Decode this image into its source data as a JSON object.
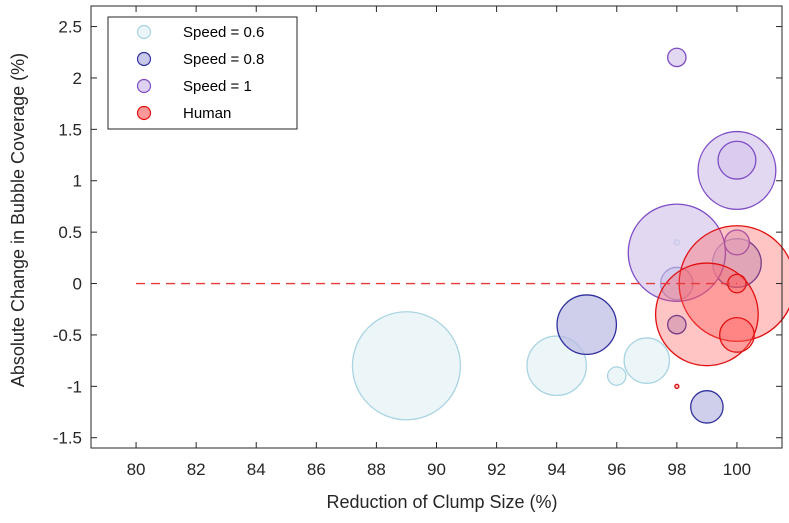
{
  "chart_data": {
    "type": "scatter",
    "title": "",
    "xlabel": "Reduction of Clump Size (%)",
    "ylabel": "Absolute Change in Bubble Coverage (%)",
    "xlim": [
      78.5,
      101.5
    ],
    "ylim": [
      -1.6,
      2.7
    ],
    "xticks": [
      80,
      82,
      84,
      86,
      88,
      90,
      92,
      94,
      96,
      98,
      100
    ],
    "yticks": [
      -1.5,
      -1,
      -0.5,
      0,
      0.5,
      1,
      1.5,
      2,
      2.5
    ],
    "reference_line": {
      "x": [
        80,
        100
      ],
      "y": 0,
      "color": "#e8393b",
      "style": "dashed"
    },
    "legend": {
      "position": "top-left"
    },
    "series": [
      {
        "name": "Speed = 0.6",
        "fill": "#e4f2f6",
        "stroke": "#a9d4e1",
        "points": [
          {
            "x": 89,
            "y": -0.8,
            "size": 1.0
          },
          {
            "x": 94,
            "y": -0.8,
            "size": 0.55
          },
          {
            "x": 97,
            "y": -0.75,
            "size": 0.42
          },
          {
            "x": 96,
            "y": -0.9,
            "size": 0.17
          },
          {
            "x": 98,
            "y": 0.4,
            "size": 0.05
          }
        ]
      },
      {
        "name": "Speed = 0.8",
        "fill": "#babbe3",
        "stroke": "#2f2f9e",
        "points": [
          {
            "x": 95,
            "y": -0.4,
            "size": 0.55
          },
          {
            "x": 98,
            "y": 0.0,
            "size": 0.3
          },
          {
            "x": 98,
            "y": -0.4,
            "size": 0.17
          },
          {
            "x": 99,
            "y": -1.2,
            "size": 0.3
          },
          {
            "x": 100,
            "y": 0.2,
            "size": 0.45
          }
        ]
      },
      {
        "name": "Speed = 1",
        "fill": "#d5c7ed",
        "stroke": "#7e4dc6",
        "points": [
          {
            "x": 98,
            "y": 2.2,
            "size": 0.17
          },
          {
            "x": 100,
            "y": 1.1,
            "size": 0.72
          },
          {
            "x": 100,
            "y": 1.2,
            "size": 0.35
          },
          {
            "x": 98,
            "y": 0.3,
            "size": 0.9
          },
          {
            "x": 100,
            "y": 0.4,
            "size": 0.23
          }
        ]
      },
      {
        "name": "Human",
        "fill": "#ff5555",
        "stroke": "#e01010",
        "opacity": 0.35,
        "points": [
          {
            "x": 100,
            "y": 0.0,
            "size": 1.07
          },
          {
            "x": 99,
            "y": -0.3,
            "size": 0.95
          },
          {
            "x": 100,
            "y": -0.5,
            "size": 0.32
          },
          {
            "x": 100,
            "y": 0.0,
            "size": 0.17
          },
          {
            "x": 98,
            "y": -1.0,
            "size": 0.03
          }
        ]
      }
    ]
  }
}
